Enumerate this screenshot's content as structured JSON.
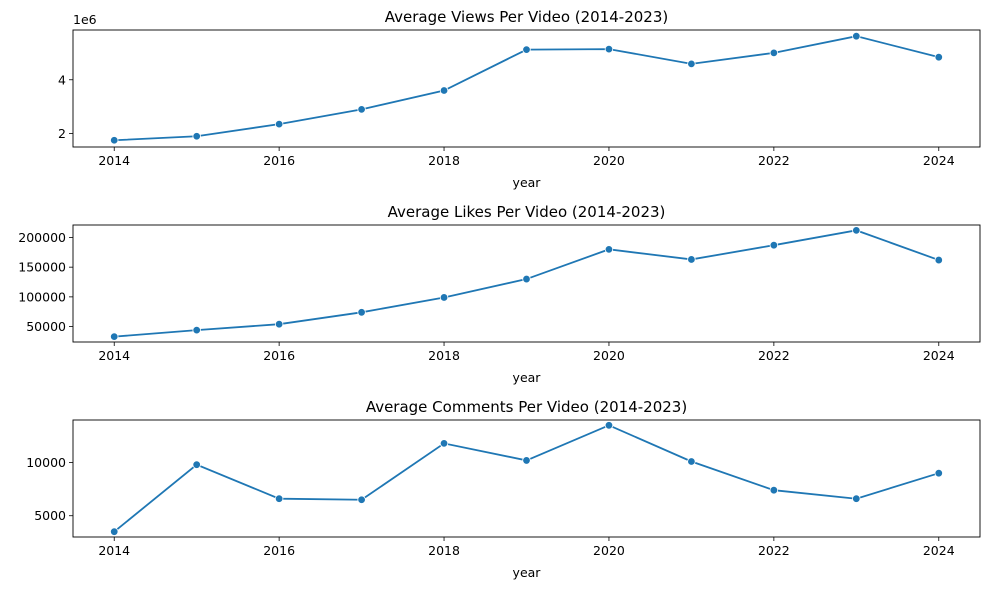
{
  "chart_data": [
    {
      "type": "line",
      "title": "Average Views Per Video (2014-2023)",
      "xlabel": "year",
      "ylabel": "",
      "y_offset_label": "1e6",
      "x": [
        2014,
        2015,
        2016,
        2017,
        2018,
        2019,
        2020,
        2021,
        2022,
        2023,
        2024
      ],
      "series": [
        {
          "values": [
            1750000,
            1900000,
            2350000,
            2900000,
            3600000,
            5120000,
            5140000,
            4590000,
            5000000,
            5620000,
            4840000
          ]
        }
      ],
      "xlim": [
        2013.5,
        2024.5
      ],
      "ylim": [
        1500000,
        5850000
      ],
      "xticks": [
        2014,
        2016,
        2018,
        2020,
        2022,
        2024
      ],
      "yticks": [
        2000000,
        4000000
      ],
      "ytick_labels": [
        "2",
        "4"
      ],
      "grid": false,
      "marker": "circle",
      "color": "#1f77b4"
    },
    {
      "type": "line",
      "title": "Average Likes Per Video (2014-2023)",
      "xlabel": "year",
      "ylabel": "",
      "x": [
        2014,
        2015,
        2016,
        2017,
        2018,
        2019,
        2020,
        2021,
        2022,
        2023,
        2024
      ],
      "series": [
        {
          "values": [
            33000,
            44000,
            54000,
            74000,
            99000,
            130000,
            180000,
            163000,
            187000,
            212000,
            162000
          ]
        }
      ],
      "xlim": [
        2013.5,
        2024.5
      ],
      "ylim": [
        24000,
        221000
      ],
      "xticks": [
        2014,
        2016,
        2018,
        2020,
        2022,
        2024
      ],
      "yticks": [
        50000,
        100000,
        150000,
        200000
      ],
      "ytick_labels": [
        "50000",
        "100000",
        "150000",
        "200000"
      ],
      "grid": false,
      "marker": "circle",
      "color": "#1f77b4"
    },
    {
      "type": "line",
      "title": "Average Comments Per Video (2014-2023)",
      "xlabel": "year",
      "ylabel": "",
      "x": [
        2014,
        2015,
        2016,
        2017,
        2018,
        2019,
        2020,
        2021,
        2022,
        2023,
        2024
      ],
      "series": [
        {
          "values": [
            3500,
            9800,
            6600,
            6500,
            11800,
            10200,
            13500,
            10100,
            7400,
            6600,
            9000
          ]
        }
      ],
      "xlim": [
        2013.5,
        2024.5
      ],
      "ylim": [
        3000,
        14000
      ],
      "xticks": [
        2014,
        2016,
        2018,
        2020,
        2022,
        2024
      ],
      "yticks": [
        5000,
        10000
      ],
      "ytick_labels": [
        "5000",
        "10000"
      ],
      "grid": false,
      "marker": "circle",
      "color": "#1f77b4"
    }
  ]
}
